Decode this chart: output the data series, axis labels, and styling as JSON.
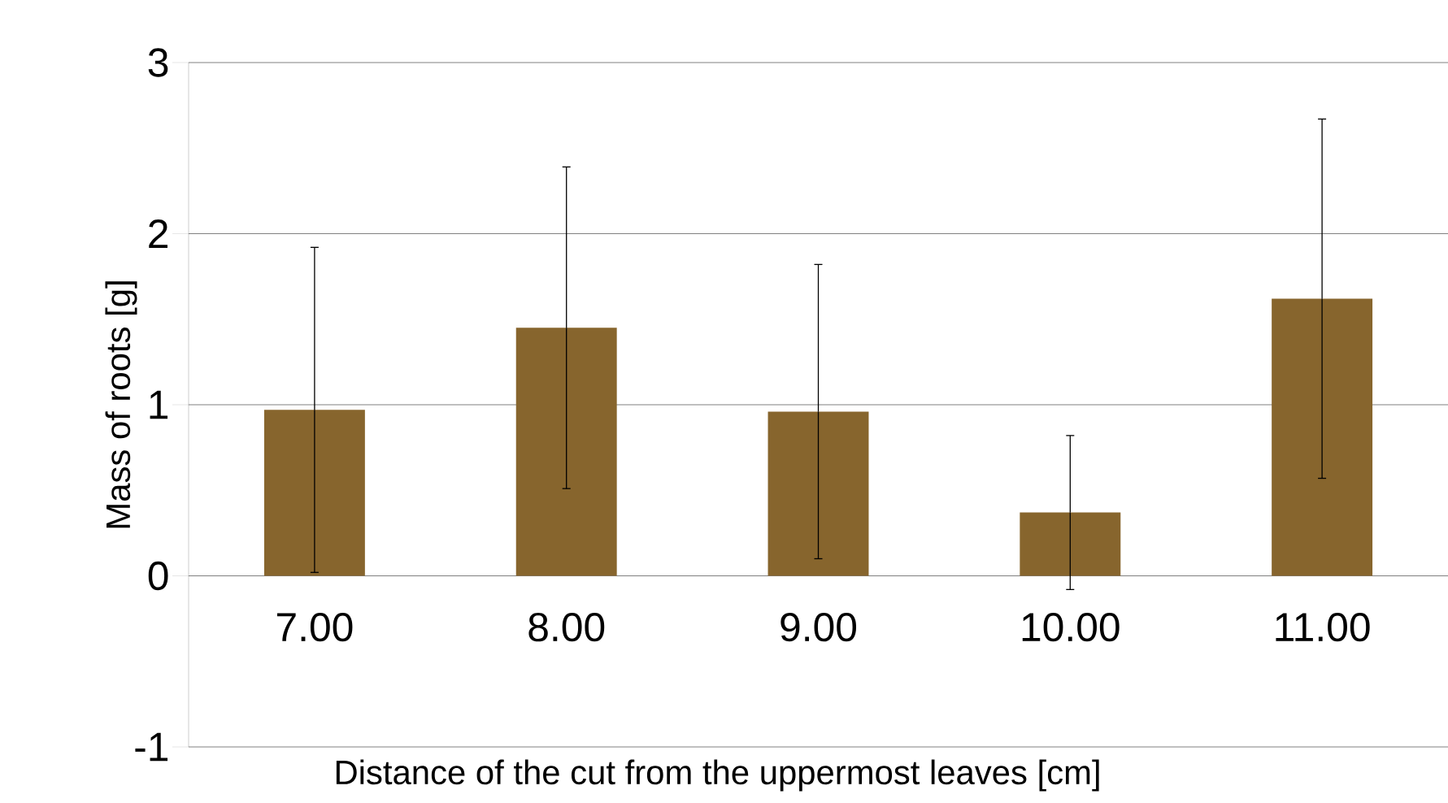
{
  "chart_data": {
    "type": "bar",
    "xlabel": "Distance of the cut from the uppermost leaves [cm]",
    "ylabel": "Mass of roots [g]",
    "categories": [
      "7.00",
      "8.00",
      "9.00",
      "10.00",
      "11.00"
    ],
    "values": [
      0.97,
      1.45,
      0.96,
      0.37,
      1.62
    ],
    "errors": [
      0.95,
      0.94,
      0.86,
      0.45,
      1.05
    ],
    "color": "#87652d",
    "ylim": [
      -1,
      3
    ],
    "yticks": [
      -1,
      0,
      1,
      2,
      3
    ],
    "grid": "y"
  }
}
